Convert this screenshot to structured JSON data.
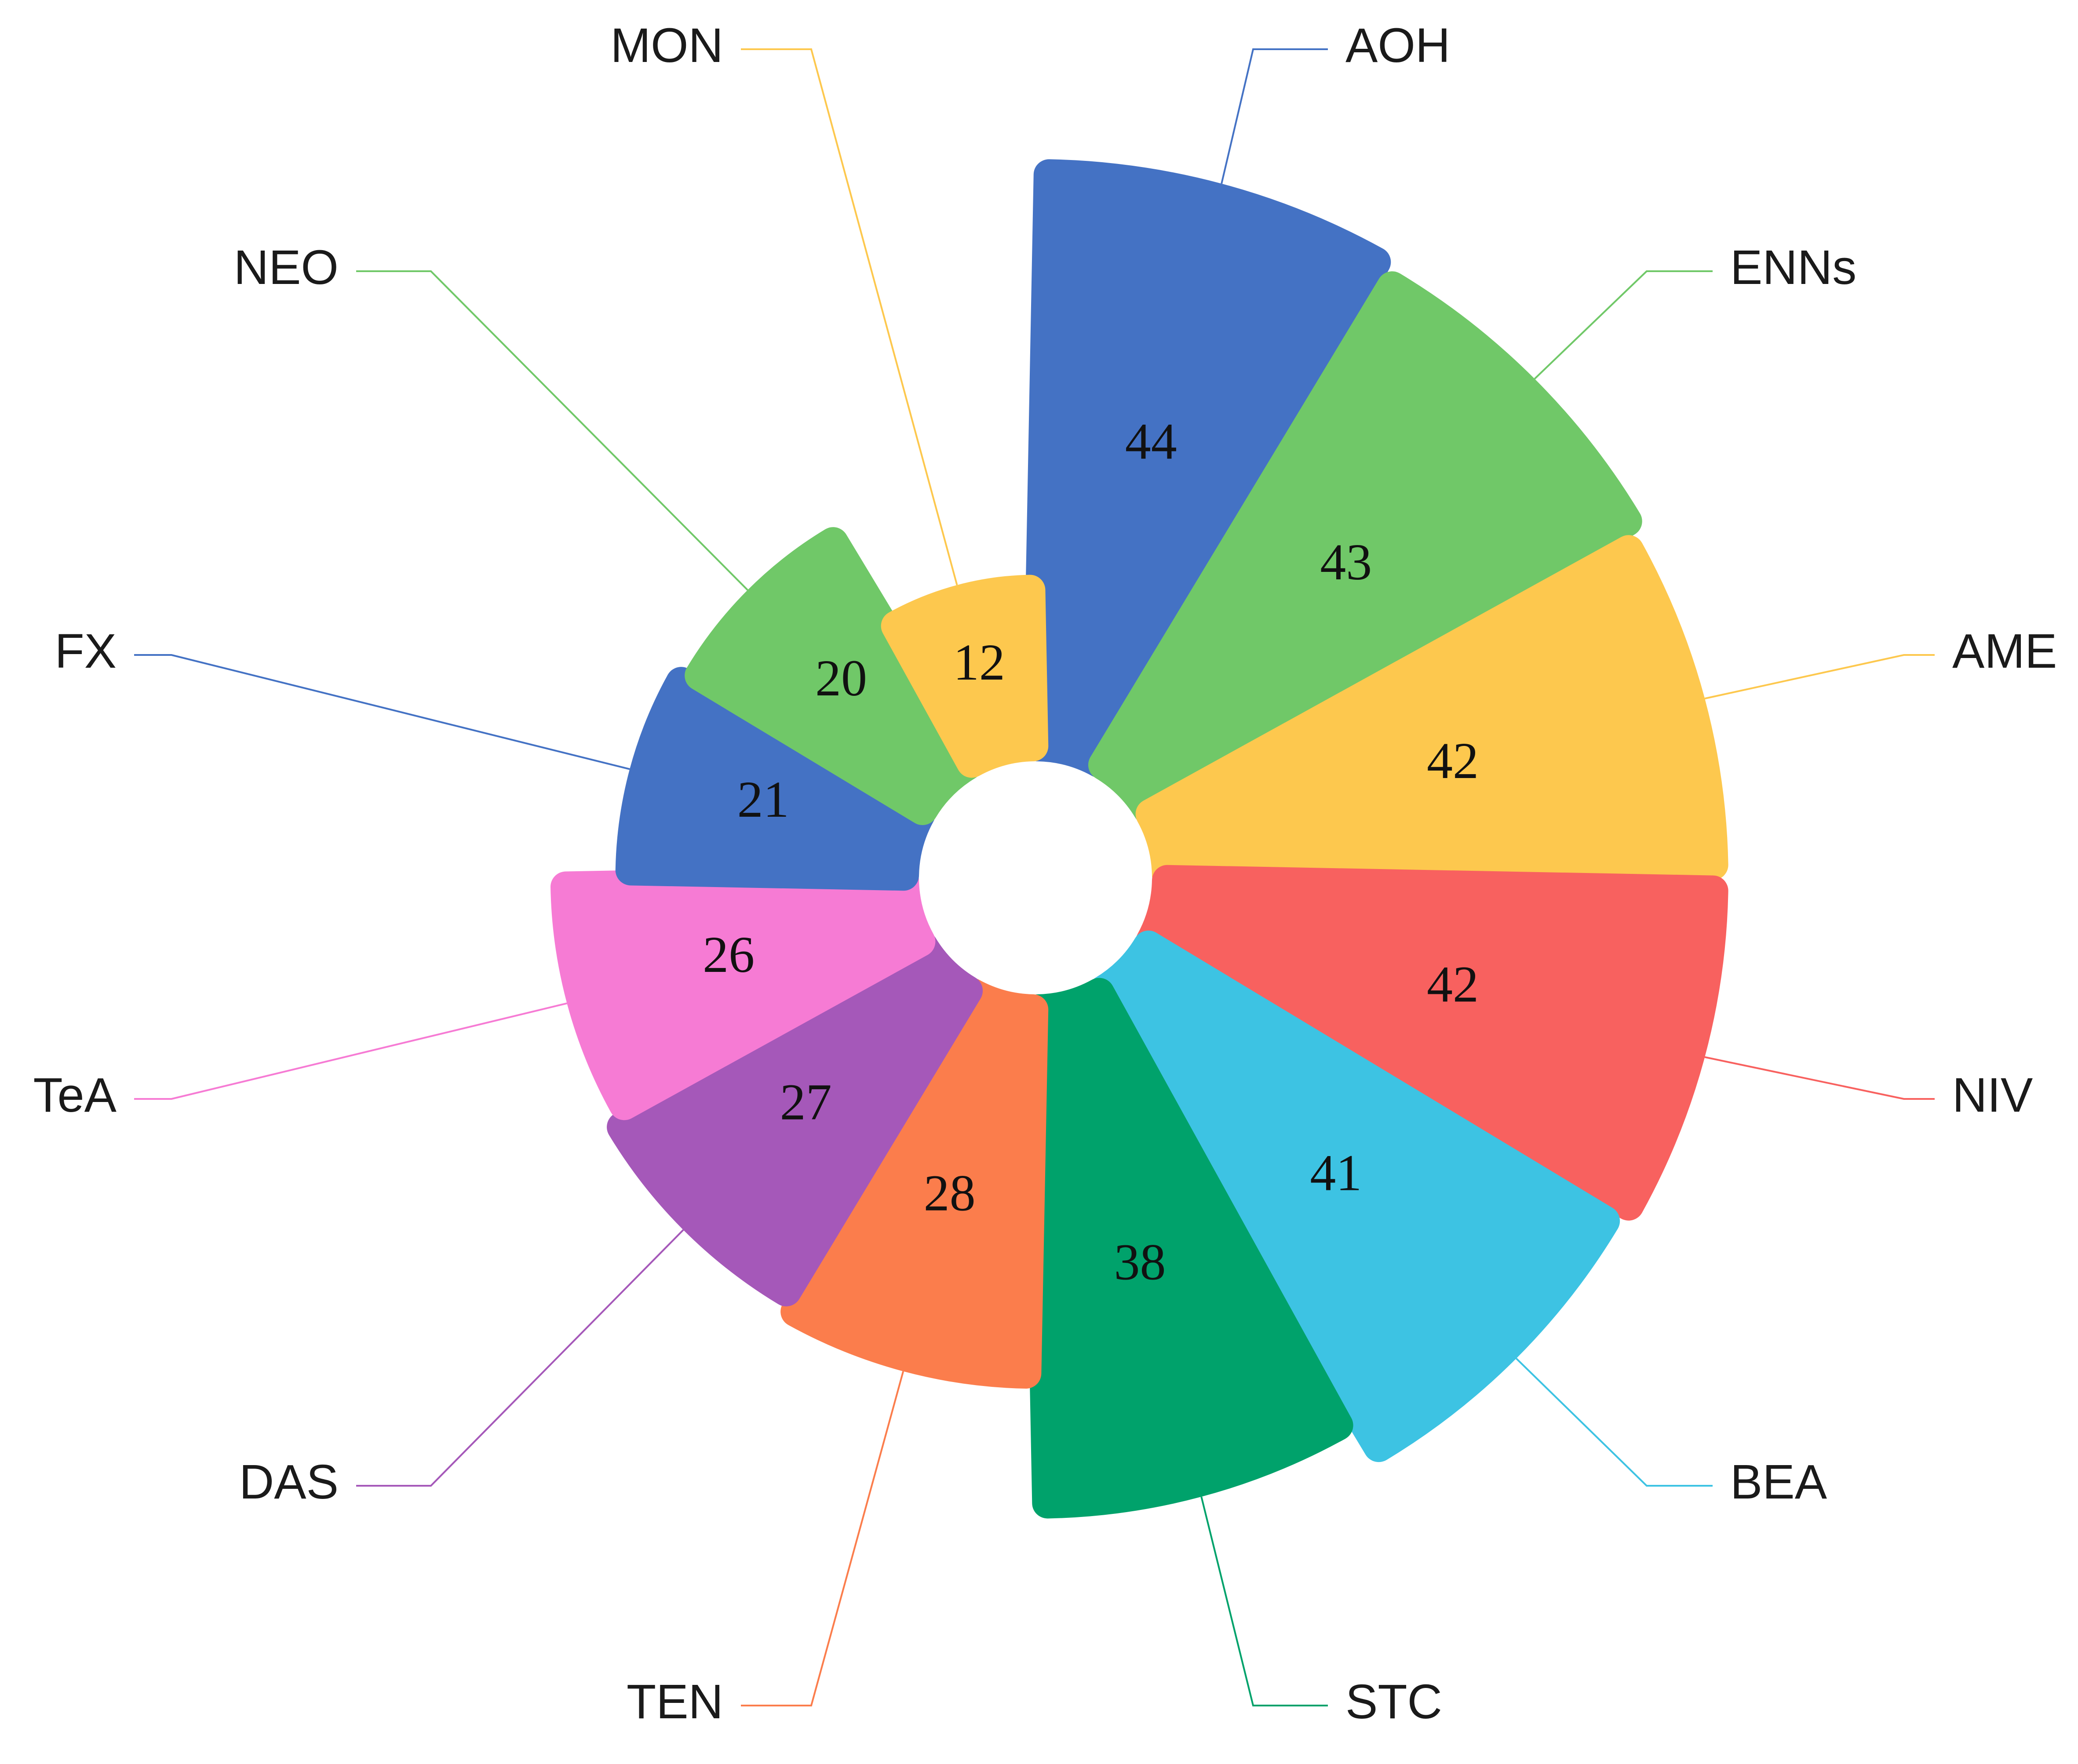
{
  "chart_data": {
    "type": "pie",
    "subtype": "nightingale-rose",
    "categories": [
      "AOH",
      "ENNs",
      "AME",
      "NIV",
      "BEA",
      "STC",
      "TEN",
      "DAS",
      "TeA",
      "FX",
      "NEO",
      "MON"
    ],
    "values": [
      44,
      43,
      42,
      42,
      41,
      38,
      28,
      27,
      26,
      21,
      20,
      12
    ],
    "colors": [
      "#4472c4",
      "#70c868",
      "#fdc84e",
      "#f8615f",
      "#3dc3e3",
      "#00a26b",
      "#fb7d4c",
      "#a558b9",
      "#f67bd4",
      "#4472c4",
      "#70c868",
      "#fdc84e"
    ],
    "value_labels": [
      "44",
      "43",
      "42",
      "42",
      "41",
      "38",
      "28",
      "27",
      "26",
      "21",
      "20",
      "12"
    ],
    "title": "",
    "legend": "none",
    "label_style": "outside-with-leader-lines"
  }
}
